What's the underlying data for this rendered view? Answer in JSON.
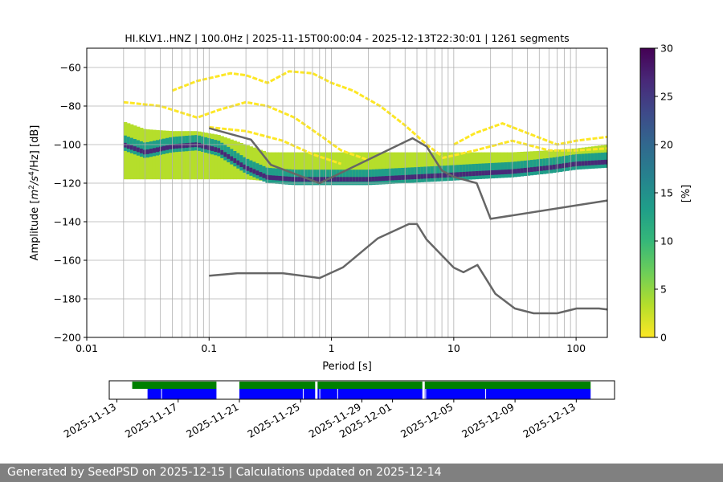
{
  "title": "HI.KLV1..HNZ | 100.0Hz | 2025-11-15T00:00:04 - 2025-12-13T22:30:01 | 1261 segments",
  "footer": "Generated by SeedPSD on 2025-12-15 | Calculations updated on 2025-12-14",
  "colors": {
    "low_noise_model": "#666666",
    "grid": "#b0b0b0",
    "availability_ok": "#0000ff",
    "availability_data": "#008000",
    "footer_bg": "#808080",
    "colormap": [
      "#fde725",
      "#b5de2b",
      "#6ece58",
      "#35b779",
      "#1f9e89",
      "#26828e",
      "#31688e",
      "#3e4989",
      "#482878",
      "#440154"
    ]
  },
  "chart_data": [
    {
      "type": "heatmap",
      "title": "HI.KLV1..HNZ | 100.0Hz | 2025-11-15T00:00:04 - 2025-12-13T22:30:01 | 1261 segments",
      "xlabel": "Period [s]",
      "ylabel": "Amplitude [m²/s⁴/Hz] [dB]",
      "ylabel_parts": {
        "prefix": "Amplitude [",
        "m": "m",
        "sup2": "2",
        "s": "/s",
        "sup4": "4",
        "hz": "/Hz] [dB]"
      },
      "x_scale": "log",
      "xlim": [
        0.01,
        180
      ],
      "ylim": [
        -200,
        -50
      ],
      "x_ticks": [
        0.01,
        0.1,
        1,
        10,
        100
      ],
      "x_tick_labels": [
        "0.01",
        "0.1",
        "1",
        "10",
        "100"
      ],
      "y_ticks": [
        -200,
        -180,
        -160,
        -140,
        -120,
        -100,
        -80,
        -60
      ],
      "y_tick_labels": [
        "−200",
        "−180",
        "−160",
        "−140",
        "−120",
        "−100",
        "−80",
        "−60"
      ],
      "grid": true,
      "grid_periods": [
        0.02,
        0.03,
        0.04,
        0.05,
        0.06,
        0.07,
        0.08,
        0.09,
        0.2,
        0.3,
        0.4,
        0.5,
        0.6,
        0.7,
        0.8,
        0.9,
        2,
        3,
        4,
        5,
        6,
        7,
        8,
        9,
        20,
        30,
        40,
        50,
        60,
        70,
        80,
        90
      ],
      "colorbar": {
        "label": "[%]",
        "range": [
          0,
          30
        ],
        "ticks": [
          0,
          5,
          10,
          15,
          20,
          25,
          30
        ],
        "tick_labels": [
          "0",
          "5",
          "10",
          "15",
          "20",
          "25",
          "30"
        ]
      },
      "density_bands": [
        {
          "name": "main",
          "pct": [
            2,
            12,
            28
          ],
          "points": [
            {
              "x": 0.02,
              "lo": -118,
              "hi": -88,
              "peak": -100
            },
            {
              "x": 0.03,
              "lo": -118,
              "hi": -92,
              "peak": -104
            },
            {
              "x": 0.05,
              "lo": -118,
              "hi": -93,
              "peak": -101
            },
            {
              "x": 0.08,
              "lo": -118,
              "hi": -93,
              "peak": -100
            },
            {
              "x": 0.12,
              "lo": -118,
              "hi": -95,
              "peak": -103
            },
            {
              "x": 0.2,
              "lo": -118,
              "hi": -100,
              "peak": -112
            },
            {
              "x": 0.3,
              "lo": -119,
              "hi": -104,
              "peak": -117
            },
            {
              "x": 0.5,
              "lo": -119,
              "hi": -104,
              "peak": -118
            },
            {
              "x": 1,
              "lo": -119,
              "hi": -104,
              "peak": -118
            },
            {
              "x": 2,
              "lo": -119,
              "hi": -104,
              "peak": -118
            },
            {
              "x": 4,
              "lo": -119,
              "hi": -104,
              "peak": -117
            },
            {
              "x": 8,
              "lo": -118,
              "hi": -104,
              "peak": -116
            },
            {
              "x": 15,
              "lo": -117,
              "hi": -104,
              "peak": -115
            },
            {
              "x": 30,
              "lo": -115,
              "hi": -104,
              "peak": -114
            },
            {
              "x": 60,
              "lo": -113,
              "hi": -103,
              "peak": -112
            },
            {
              "x": 100,
              "lo": -112,
              "hi": -102,
              "peak": -110
            },
            {
              "x": 180,
              "lo": -111,
              "hi": -100,
              "peak": -109
            }
          ]
        }
      ],
      "sparse_traces": [
        {
          "name": "trace-a",
          "points": [
            [
              0.05,
              -72
            ],
            [
              0.08,
              -67
            ],
            [
              0.15,
              -63
            ],
            [
              0.2,
              -64
            ],
            [
              0.3,
              -68
            ],
            [
              0.45,
              -62
            ],
            [
              0.7,
              -63
            ],
            [
              1.0,
              -68
            ],
            [
              1.5,
              -72
            ],
            [
              2.5,
              -80
            ],
            [
              4.0,
              -90
            ],
            [
              6.0,
              -100
            ],
            [
              8.0,
              -106
            ]
          ]
        },
        {
          "name": "trace-b",
          "points": [
            [
              0.02,
              -78
            ],
            [
              0.04,
              -80
            ],
            [
              0.08,
              -86
            ],
            [
              0.12,
              -82
            ],
            [
              0.2,
              -78
            ],
            [
              0.3,
              -80
            ],
            [
              0.5,
              -86
            ],
            [
              0.8,
              -95
            ],
            [
              1.2,
              -103
            ],
            [
              2.0,
              -108
            ]
          ]
        },
        {
          "name": "trace-c",
          "points": [
            [
              0.1,
              -91
            ],
            [
              0.2,
              -93
            ],
            [
              0.4,
              -98
            ],
            [
              0.7,
              -105
            ],
            [
              1.2,
              -110
            ]
          ]
        },
        {
          "name": "trace-d",
          "points": [
            [
              10,
              -100
            ],
            [
              15,
              -94
            ],
            [
              25,
              -89
            ],
            [
              40,
              -94
            ],
            [
              70,
              -100
            ],
            [
              100,
              -98
            ],
            [
              180,
              -96
            ]
          ]
        },
        {
          "name": "trace-e",
          "points": [
            [
              8,
              -107
            ],
            [
              15,
              -103
            ],
            [
              30,
              -98
            ],
            [
              60,
              -103
            ],
            [
              100,
              -103
            ],
            [
              180,
              -102
            ]
          ]
        }
      ],
      "series": [
        {
          "name": "",
          "x": [
            0.1,
            0.22,
            0.32,
            0.8,
            4.6,
            6.0,
            8.0,
            10.0,
            15.4,
            20.0,
            180.0
          ],
          "y": [
            -91.5,
            -97.4,
            -110.5,
            -120.0,
            -96.7,
            -101.0,
            -113.5,
            -116.7,
            -120.0,
            -138.5,
            -129.0
          ]
        },
        {
          "name": "",
          "x": [
            0.1,
            0.17,
            0.4,
            0.8,
            1.24,
            2.4,
            4.3,
            5.0,
            6.0,
            10.0,
            12.0,
            15.6,
            21.9,
            31.6,
            45.0,
            70.0,
            101.0,
            154.0,
            180.0
          ],
          "y": [
            -168.0,
            -166.7,
            -166.7,
            -169.2,
            -163.7,
            -148.6,
            -141.2,
            -141.2,
            -149.3,
            -163.8,
            -166.2,
            -162.4,
            -177.4,
            -185.0,
            -187.5,
            -187.5,
            -185.0,
            -185.0,
            -185.5
          ]
        }
      ]
    },
    {
      "type": "bar",
      "x_ticks": [
        "2025-11-13",
        "2025-11-17",
        "2025-11-21",
        "2025-11-25",
        "2025-11-29",
        "2025-12-01",
        "2025-12-05",
        "2025-12-09",
        "2025-12-13"
      ],
      "x_range": [
        "2025-11-12T12:00",
        "2025-12-15T12:00"
      ],
      "data_spans": [
        {
          "start": "2025-11-14T00:00",
          "end": "2025-11-19T12:00"
        },
        {
          "start": "2025-11-21T00:00",
          "end": "2025-12-13T22:30"
        }
      ],
      "processed_spans": [
        {
          "start": "2025-11-15T00:00",
          "end": "2025-11-19T12:00"
        },
        {
          "start": "2025-11-21T00:00",
          "end": "2025-12-13T22:30"
        }
      ],
      "gaps": [
        "2025-11-15T22:00",
        "2025-11-25T04:00",
        "2025-11-26T06:00",
        "2025-11-27T10:00",
        "2025-12-03T04:00",
        "2025-12-07T02:00"
      ],
      "white_gaps": [
        "2025-11-26T00:00",
        "2025-12-03T00:00"
      ]
    }
  ]
}
